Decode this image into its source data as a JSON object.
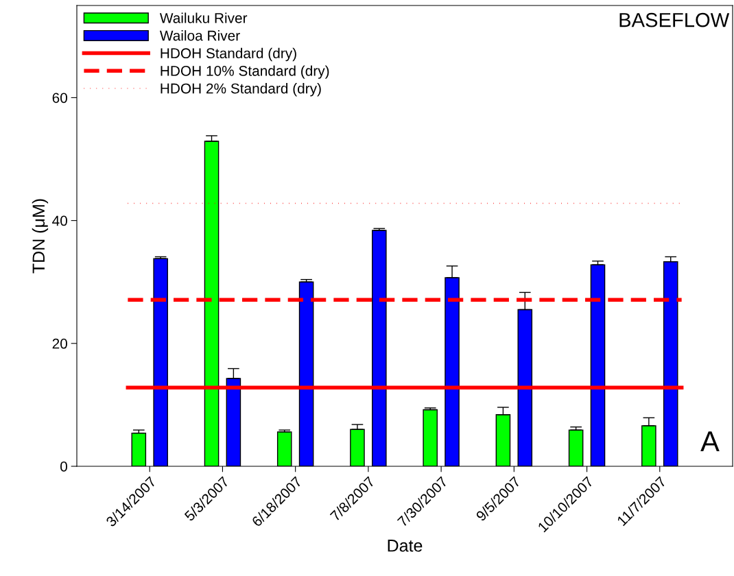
{
  "chart_data": {
    "type": "bar",
    "xlabel": "Date",
    "ylabel": "TDN (μM)",
    "categories": [
      "3/14/2007",
      "5/3/2007",
      "6/18/2007",
      "7/8/2007",
      "7/30/2007",
      "9/5/2007",
      "10/10/2007",
      "11/7/2007"
    ],
    "series": [
      {
        "name": "Wailuku River",
        "color": "#00ff00",
        "values": [
          5.4,
          52.9,
          5.6,
          6.0,
          9.2,
          8.4,
          5.9,
          6.6
        ],
        "errors": [
          [
            5.4,
            5.9
          ],
          [
            52.9,
            53.8
          ],
          [
            5.6,
            5.9
          ],
          [
            6.0,
            6.8
          ],
          [
            9.2,
            9.5
          ],
          [
            8.4,
            9.6
          ],
          [
            5.9,
            6.4
          ],
          [
            6.6,
            7.9
          ]
        ]
      },
      {
        "name": "Wailoa River",
        "color": "#0000ff",
        "values": [
          33.8,
          14.3,
          30.0,
          38.4,
          30.7,
          25.5,
          32.8,
          33.3
        ],
        "errors": [
          [
            33.8,
            34.1
          ],
          [
            14.3,
            15.9
          ],
          [
            30.0,
            30.4
          ],
          [
            38.4,
            38.7
          ],
          [
            30.7,
            32.6
          ],
          [
            25.5,
            28.3
          ],
          [
            32.8,
            33.4
          ],
          [
            33.3,
            34.1
          ]
        ]
      }
    ],
    "ref_lines": [
      {
        "axis": "y",
        "value": 12.8,
        "label": "HDOH Standard (dry)",
        "color": "#ff0000",
        "line_style": "solid"
      },
      {
        "axis": "y",
        "value": 27.1,
        "label": "HDOH 10% Standard (dry)",
        "color": "#ff0000",
        "line_style": "dashed"
      },
      {
        "axis": "y",
        "value": 42.8,
        "label": "HDOH 2% Standard (dry)",
        "color": "#ff0000",
        "line_style": "dotted"
      }
    ],
    "ylim": [
      0,
      75
    ],
    "yticks": [
      0,
      20,
      40,
      60
    ],
    "grid": false,
    "legend": "top left",
    "annotations": [
      "BASEFLOW",
      "A"
    ]
  }
}
